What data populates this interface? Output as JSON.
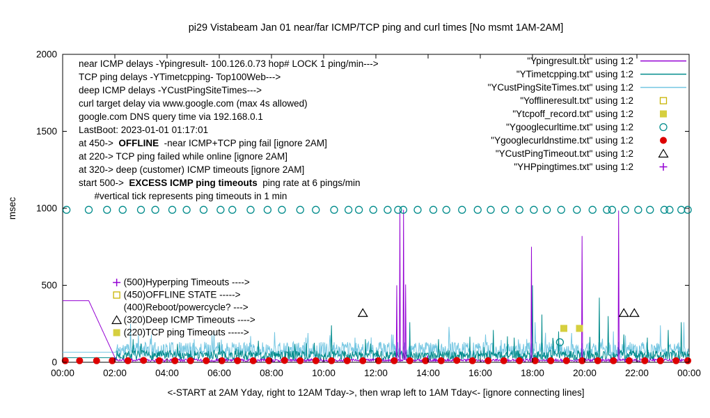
{
  "chart_data": {
    "type": "line",
    "title": "pi29 Vistabeam Jan 01  near/far ICMP/TCP ping and curl times [No msmt 1AM-2AM]",
    "ylabel": "msec",
    "xlabel": "<-START at 2AM Yday, right to 12AM Tday->, then wrap left to 1AM Tday<- [ignore connecting lines]",
    "ylim": [
      0,
      2000
    ],
    "xlim_hours": [
      0,
      24
    ],
    "grid": false,
    "y_ticks": [
      0,
      500,
      1000,
      1500,
      2000
    ],
    "x_tick_hours": [
      0,
      2,
      4,
      6,
      8,
      10,
      12,
      14,
      16,
      18,
      20,
      22,
      24
    ],
    "x_tick_labels": [
      "00:00",
      "02:00",
      "04:00",
      "06:00",
      "08:00",
      "10:00",
      "12:00",
      "14:00",
      "16:00",
      "18:00",
      "20:00",
      "22:00",
      "00:00"
    ],
    "legend_position": "top-right-inside",
    "legend": [
      {
        "label": "\"Ypingresult.txt\" using 1:2",
        "sample": "line",
        "color": "#9400d3"
      },
      {
        "label": "\"YTimetcpping.txt\" using 1:2",
        "sample": "line",
        "color": "#008b8b"
      },
      {
        "label": "\"YCustPingSiteTimes.txt\" using 1:2",
        "sample": "line",
        "color": "#74c6e2"
      },
      {
        "label": "\"Yofflineresult.txt\" using 1:2",
        "sample": "square-open",
        "color": "#c8b400"
      },
      {
        "label": "\"Ytcpoff_record.txt\" using 1:2",
        "sample": "square-filled",
        "color": "#d6cf3f"
      },
      {
        "label": "\"Ygooglecurltime.txt\" using 1:2",
        "sample": "circle-open",
        "color": "#008b8b"
      },
      {
        "label": "\"Ygooglecurldnstime.txt\" using 1:2",
        "sample": "circle-filled",
        "color": "#dd0000"
      },
      {
        "label": "\"YCustPingTimeout.txt\" using 1:2",
        "sample": "triangle-open",
        "color": "#000000"
      },
      {
        "label": "\"YHPpingtimes.txt\" using 1:2",
        "sample": "plus",
        "color": "#9400d3"
      }
    ],
    "series": [
      {
        "name": "YCustPingSiteTimes",
        "color": "#74c6e2",
        "seed": 11,
        "baseline": 80,
        "noise": 52,
        "spike_prob": 0.035,
        "spike_extra": 110,
        "flat": [
          [
            0,
            65
          ],
          [
            2.05,
            65
          ]
        ],
        "spikes": [
          [
            2.6,
            250
          ],
          [
            3.4,
            180
          ],
          [
            5.8,
            200
          ],
          [
            7.2,
            170
          ],
          [
            9.4,
            190
          ],
          [
            11.2,
            160
          ],
          [
            12.6,
            180
          ],
          [
            14.8,
            230
          ],
          [
            16.2,
            180
          ],
          [
            18.1,
            260
          ],
          [
            19.5,
            190
          ],
          [
            21.1,
            200
          ],
          [
            22.9,
            240
          ],
          [
            23.8,
            260
          ]
        ]
      },
      {
        "name": "YTimetcpping",
        "color": "#008b8b",
        "seed": 7,
        "baseline": 45,
        "noise": 32,
        "spike_prob": 0.025,
        "spike_extra": 110,
        "flat": [
          [
            0,
            30
          ],
          [
            2.05,
            30
          ]
        ],
        "spikes": [
          [
            2.7,
            150
          ],
          [
            4.4,
            120
          ],
          [
            6.0,
            130
          ],
          [
            7.5,
            140
          ],
          [
            8.9,
            120
          ],
          [
            10.3,
            240
          ],
          [
            11.6,
            150
          ],
          [
            13.3,
            260
          ],
          [
            14.4,
            150
          ],
          [
            16.5,
            210
          ],
          [
            17.3,
            160
          ],
          [
            18.0,
            500
          ],
          [
            18.35,
            310
          ],
          [
            19.0,
            200
          ],
          [
            20.55,
            420
          ],
          [
            20.9,
            300
          ],
          [
            21.5,
            180
          ],
          [
            22.4,
            160
          ],
          [
            23.2,
            210
          ],
          [
            23.7,
            260
          ]
        ]
      },
      {
        "name": "Ypingresult",
        "color": "#9400d3",
        "seed": 3,
        "baseline": 13,
        "noise": 9,
        "spike_prob": 0.008,
        "spike_extra": 70,
        "flat": [
          [
            0,
            400
          ],
          [
            1.0,
            400
          ],
          [
            2.05,
            13
          ]
        ],
        "spikes": [
          [
            12.8,
            500
          ],
          [
            12.92,
            990
          ],
          [
            13.06,
            990
          ],
          [
            13.14,
            505
          ],
          [
            17.95,
            750
          ],
          [
            19.9,
            820
          ],
          [
            21.3,
            985
          ]
        ]
      }
    ],
    "markers": [
      {
        "name": "Ygooglecurltime",
        "shape": "circle-open",
        "color": "#008b8b",
        "points": [
          [
            0.15,
            990
          ],
          [
            1.0,
            990
          ],
          [
            1.7,
            990
          ],
          [
            2.3,
            990
          ],
          [
            3.0,
            990
          ],
          [
            3.55,
            990
          ],
          [
            4.2,
            990
          ],
          [
            4.75,
            990
          ],
          [
            5.4,
            990
          ],
          [
            6.05,
            990
          ],
          [
            6.5,
            990
          ],
          [
            7.2,
            990
          ],
          [
            7.85,
            990
          ],
          [
            8.4,
            990
          ],
          [
            9.1,
            990
          ],
          [
            9.7,
            990
          ],
          [
            10.4,
            990
          ],
          [
            10.95,
            990
          ],
          [
            11.35,
            990
          ],
          [
            11.9,
            990
          ],
          [
            12.45,
            990
          ],
          [
            12.85,
            990
          ],
          [
            13.05,
            990
          ],
          [
            13.6,
            990
          ],
          [
            14.2,
            990
          ],
          [
            14.7,
            990
          ],
          [
            15.3,
            990
          ],
          [
            15.9,
            990
          ],
          [
            16.4,
            990
          ],
          [
            16.95,
            990
          ],
          [
            17.5,
            990
          ],
          [
            18.05,
            990
          ],
          [
            18.55,
            990
          ],
          [
            19.1,
            990
          ],
          [
            19.7,
            990
          ],
          [
            20.3,
            990
          ],
          [
            20.85,
            990
          ],
          [
            21.05,
            990
          ],
          [
            21.55,
            990
          ],
          [
            22.05,
            990
          ],
          [
            22.5,
            990
          ],
          [
            23.05,
            990
          ],
          [
            23.25,
            990
          ],
          [
            23.7,
            990
          ],
          [
            23.95,
            990
          ],
          [
            19.05,
            130
          ]
        ]
      },
      {
        "name": "Ygooglecurldnstime",
        "shape": "circle-filled",
        "color": "#dd0000",
        "points": [
          [
            0.1,
            10
          ],
          [
            0.65,
            10
          ],
          [
            1.3,
            10
          ],
          [
            1.9,
            10
          ],
          [
            2.5,
            10
          ],
          [
            3.1,
            12
          ],
          [
            3.7,
            10
          ],
          [
            4.3,
            10
          ],
          [
            4.9,
            10
          ],
          [
            5.5,
            10
          ],
          [
            6.1,
            10
          ],
          [
            6.7,
            10
          ],
          [
            7.3,
            10
          ],
          [
            7.9,
            10
          ],
          [
            8.5,
            12
          ],
          [
            9.1,
            10
          ],
          [
            9.7,
            10
          ],
          [
            10.3,
            10
          ],
          [
            10.9,
            10
          ],
          [
            11.5,
            10
          ],
          [
            12.1,
            10
          ],
          [
            12.7,
            10
          ],
          [
            13.3,
            10
          ],
          [
            13.9,
            10
          ],
          [
            14.5,
            10
          ],
          [
            15.1,
            12
          ],
          [
            15.7,
            10
          ],
          [
            16.3,
            10
          ],
          [
            16.9,
            10
          ],
          [
            17.5,
            10
          ],
          [
            18.1,
            10
          ],
          [
            18.7,
            10
          ],
          [
            19.3,
            10
          ],
          [
            19.9,
            10
          ],
          [
            20.5,
            10
          ],
          [
            21.1,
            10
          ],
          [
            21.7,
            10
          ],
          [
            22.3,
            10
          ],
          [
            22.9,
            10
          ],
          [
            23.5,
            10
          ],
          [
            23.95,
            10
          ]
        ]
      },
      {
        "name": "YCustPingTimeout",
        "shape": "triangle-open",
        "color": "#000000",
        "points": [
          [
            11.5,
            320
          ],
          [
            21.5,
            320
          ],
          [
            21.9,
            320
          ]
        ]
      },
      {
        "name": "Ytcpoff_record",
        "shape": "square-filled",
        "color": "#d6cf3f",
        "points": [
          [
            19.2,
            220
          ],
          [
            19.8,
            220
          ]
        ]
      }
    ],
    "level_labels": {
      "marker_hour": 2.07,
      "items": [
        {
          "value": 500,
          "marker": "plus",
          "color": "#9400d3",
          "text": "(500)Hyperping Timeouts ---->"
        },
        {
          "value": 450,
          "marker": "square-open",
          "color": "#c8b400",
          "text": "(450)OFFLINE STATE ----->"
        },
        {
          "value": 400,
          "marker": "none",
          "color": "#000000",
          "text": "(400)Reboot/powercycle? --->"
        },
        {
          "value": 320,
          "marker": "triangle-open",
          "color": "#000000",
          "text": "(320)Deep ICMP Timeouts ---->"
        },
        {
          "value": 220,
          "marker": "square-filled",
          "color": "#d6cf3f",
          "text": "(220)TCP ping Timeouts ----->"
        }
      ]
    },
    "info_lines": [
      [
        {
          "t": "near ICMP delays -Ypingresult- 100.126.0.73 hop# LOCK 1 ping/min--->"
        }
      ],
      [
        {
          "t": "TCP ping delays -YTimetcpping- Top100Web--->"
        }
      ],
      [
        {
          "t": "deep ICMP delays -YCustPingSiteTimes--->"
        }
      ],
      [
        {
          "t": "curl target delay via www.google.com (max 4s allowed)"
        }
      ],
      [
        {
          "t": "google.com DNS query time via 192.168.0.1"
        }
      ],
      [
        {
          "t": "LastBoot: 2023-01-01 01:17:01"
        }
      ],
      [
        {
          "t": "at 450->  "
        },
        {
          "t": "OFFLINE",
          "b": 1
        },
        {
          "t": "  -near ICMP+TCP ping fail [ignore 2AM]"
        }
      ],
      [
        {
          "t": "at 220-> TCP ping failed while online [ignore 2AM]"
        }
      ],
      [
        {
          "t": "at 320-> deep (customer) ICMP timeouts [ignore 2AM]"
        }
      ],
      [
        {
          "t": "start 500->  "
        },
        {
          "t": "EXCESS ICMP ping timeouts",
          "b": 1
        },
        {
          "t": "  ping rate at 6 pings/min"
        }
      ],
      [
        {
          "t": "      #vertical tick represents ping timeouts in 1 min"
        }
      ]
    ]
  }
}
